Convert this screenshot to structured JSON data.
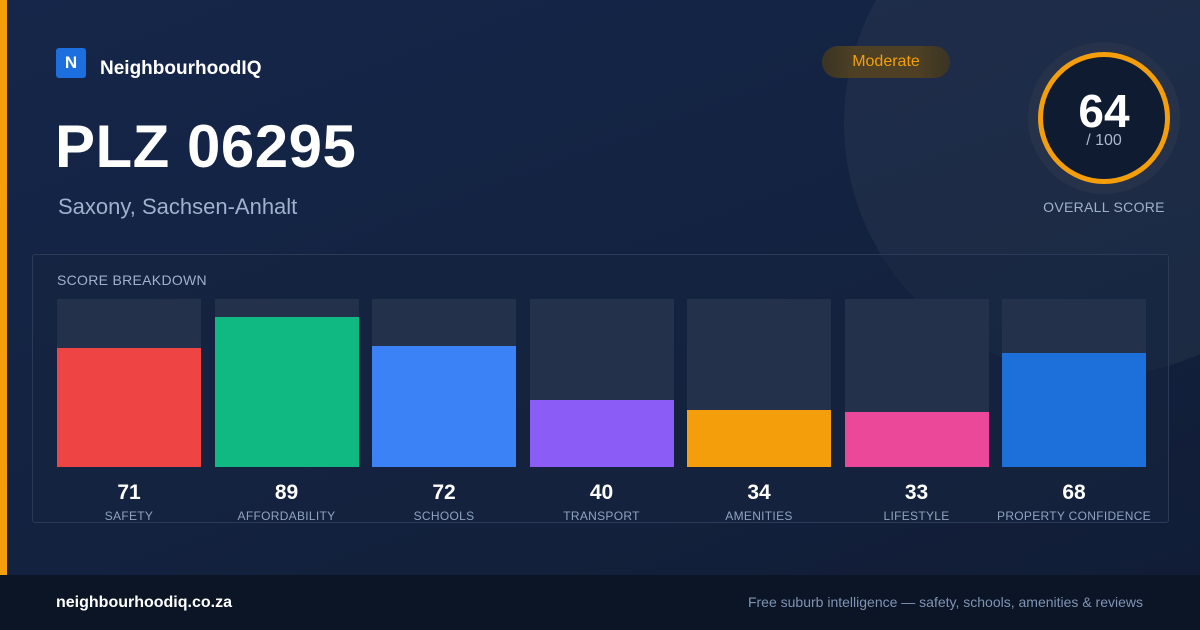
{
  "brand": {
    "logo_letter": "N",
    "name": "NeighbourhoodIQ"
  },
  "location": {
    "title": "PLZ 06295",
    "subtitle": "Saxony, Sachsen-Anhalt"
  },
  "badge": {
    "label": "Moderate",
    "color": "#f59e0b"
  },
  "overall": {
    "score": "64",
    "max_label": "/ 100",
    "caption": "OVERALL SCORE",
    "ring_color": "#f59e0b"
  },
  "breakdown": {
    "title": "SCORE BREAKDOWN",
    "max": 100
  },
  "chart_data": {
    "type": "bar",
    "categories": [
      "SAFETY",
      "AFFORDABILITY",
      "SCHOOLS",
      "TRANSPORT",
      "AMENITIES",
      "LIFESTYLE",
      "PROPERTY CONFIDENCE"
    ],
    "values": [
      71,
      89,
      72,
      40,
      34,
      33,
      68
    ],
    "colors": [
      "#ef4444",
      "#10b981",
      "#3b82f6",
      "#8b5cf6",
      "#f59e0b",
      "#ec4899",
      "#1d6fd9"
    ],
    "ylim": [
      0,
      100
    ]
  },
  "footer": {
    "domain": "neighbourhoodiq.co.za",
    "tagline": "Free suburb intelligence — safety, schools, amenities & reviews"
  }
}
